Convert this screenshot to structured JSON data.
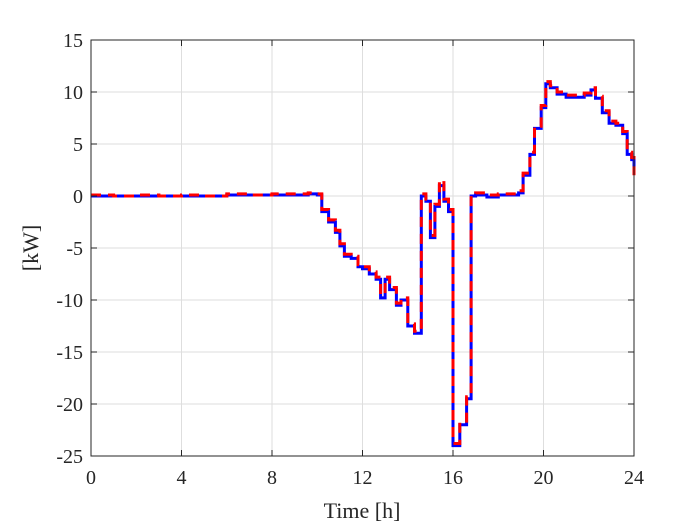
{
  "chart_data": {
    "type": "line",
    "title": "",
    "xlabel": "Time [h]",
    "ylabel": "[kW]",
    "xlim": [
      0,
      24
    ],
    "ylim": [
      -25,
      15
    ],
    "xticks": [
      0,
      4,
      8,
      12,
      16,
      20,
      24
    ],
    "yticks": [
      -25,
      -20,
      -15,
      -10,
      -5,
      0,
      5,
      10,
      15
    ],
    "x_tick_labels": [
      "0",
      "4",
      "8",
      "12",
      "16",
      "20",
      "24"
    ],
    "y_tick_labels": [
      "-25",
      "-20",
      "-15",
      "-10",
      "-5",
      "0",
      "5",
      "10",
      "15"
    ],
    "grid": true,
    "legend": "none",
    "series": [
      {
        "color": "#0000ff",
        "style": "solid",
        "x": [
          0,
          1,
          2,
          3,
          4,
          5,
          6,
          7,
          8,
          9,
          9.6,
          10.0,
          10.2,
          10.5,
          10.8,
          11.0,
          11.2,
          11.5,
          11.8,
          12.0,
          12.3,
          12.6,
          12.8,
          13.0,
          13.2,
          13.5,
          13.7,
          14.0,
          14.3,
          14.5,
          14.6,
          14.8,
          15.0,
          15.2,
          15.4,
          15.6,
          15.8,
          16.0,
          16.3,
          16.6,
          16.8,
          17.0,
          17.5,
          18.0,
          18.5,
          18.9,
          19.1,
          19.4,
          19.6,
          19.9,
          20.1,
          20.3,
          20.6,
          21.0,
          21.4,
          21.8,
          22.1,
          22.3,
          22.6,
          22.9,
          23.2,
          23.5,
          23.7,
          23.9,
          24.0
        ],
        "y": [
          0,
          0,
          0,
          0,
          0,
          0,
          0.1,
          0.1,
          0.1,
          0.1,
          0.2,
          0.1,
          -1.5,
          -2.5,
          -3.5,
          -4.8,
          -5.8,
          -6.0,
          -6.8,
          -7.0,
          -7.5,
          -8.0,
          -9.8,
          -8.0,
          -9.0,
          -10.5,
          -10.0,
          -12.5,
          -13.2,
          -13.2,
          0,
          -0.5,
          -4.0,
          -1.0,
          1.0,
          -0.5,
          -1.5,
          -24.0,
          -22.0,
          -19.5,
          0,
          0.1,
          -0.1,
          0.1,
          0.1,
          0.3,
          2.0,
          4.0,
          6.5,
          8.5,
          10.8,
          10.4,
          9.8,
          9.5,
          9.5,
          9.7,
          10.2,
          9.4,
          8.0,
          7.0,
          6.8,
          6.0,
          4.0,
          3.5,
          2.2
        ]
      },
      {
        "color": "#ff0000",
        "style": "dashed",
        "x": [
          0,
          1,
          2,
          3,
          4,
          5,
          6,
          7,
          8,
          9,
          9.6,
          10.0,
          10.2,
          10.5,
          10.8,
          11.0,
          11.2,
          11.5,
          11.8,
          12.0,
          12.3,
          12.6,
          12.8,
          13.0,
          13.2,
          13.5,
          13.7,
          14.0,
          14.3,
          14.5,
          14.6,
          14.8,
          15.0,
          15.2,
          15.4,
          15.6,
          15.8,
          16.0,
          16.3,
          16.6,
          16.8,
          17.0,
          17.5,
          18.0,
          18.5,
          18.9,
          19.1,
          19.4,
          19.6,
          19.9,
          20.1,
          20.3,
          20.6,
          21.0,
          21.4,
          21.8,
          22.1,
          22.3,
          22.6,
          22.9,
          23.2,
          23.5,
          23.7,
          23.9,
          24.0
        ],
        "y": [
          0.1,
          0,
          0.1,
          0,
          0.1,
          0,
          0.2,
          0.1,
          0.2,
          0.2,
          0.3,
          0.2,
          -1.3,
          -2.3,
          -3.3,
          -4.6,
          -5.6,
          -5.8,
          -6.6,
          -6.8,
          -7.3,
          -7.8,
          -9.5,
          -7.8,
          -8.8,
          -10.3,
          -9.8,
          -12.3,
          -13.0,
          -13.0,
          0.2,
          -0.3,
          -3.8,
          -0.8,
          1.5,
          -0.3,
          -1.3,
          -23.8,
          -21.8,
          -19.3,
          0.2,
          0.3,
          0.1,
          0.2,
          0.2,
          0.5,
          2.2,
          4.2,
          6.7,
          8.7,
          11.0,
          10.6,
          10.0,
          9.7,
          9.7,
          9.9,
          10.4,
          9.6,
          8.2,
          7.2,
          7.0,
          6.2,
          4.2,
          3.7,
          2.0
        ]
      }
    ]
  }
}
